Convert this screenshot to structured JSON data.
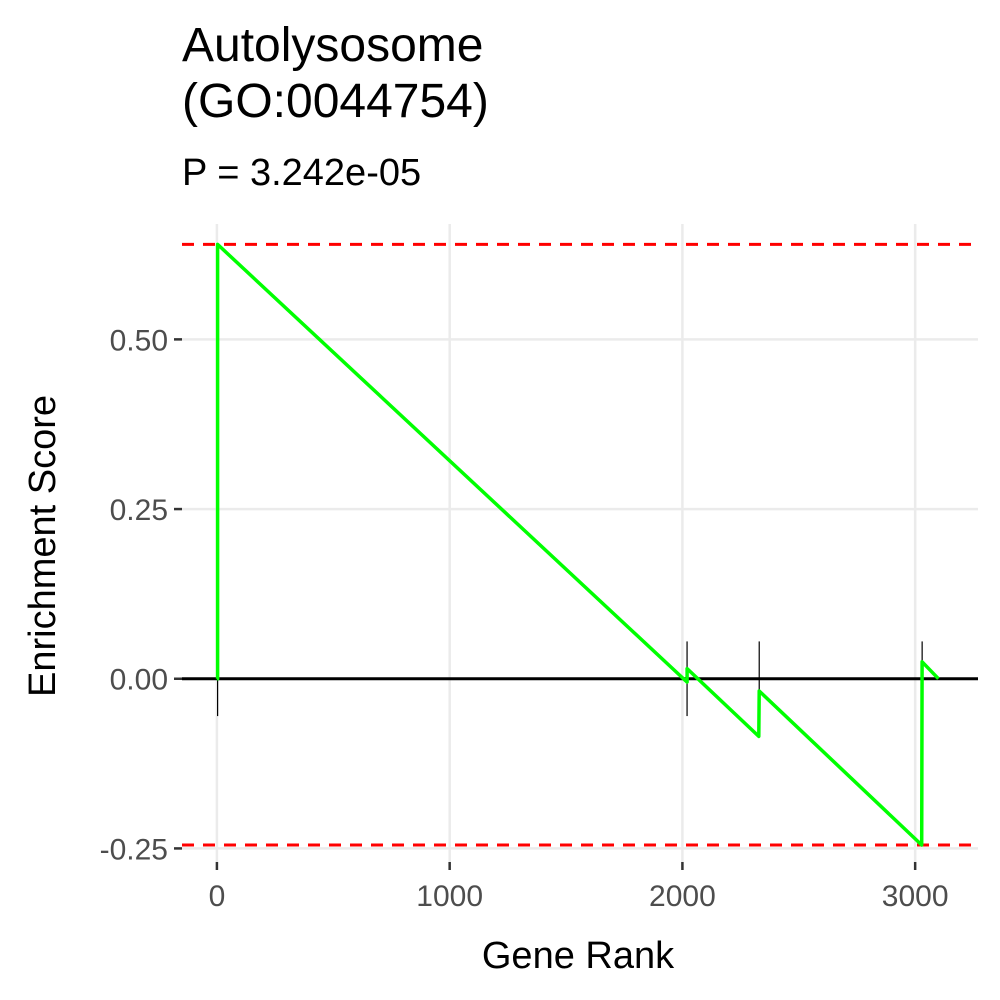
{
  "chart_data": {
    "type": "line",
    "title_line1": "Autolysosome",
    "title_line2": "(GO:0044754)",
    "subtitle": "P = 3.242e-05",
    "xlabel": "Gene Rank",
    "ylabel": "Enrichment Score",
    "xlim": [
      -150,
      3270
    ],
    "ylim": [
      -0.27,
      0.67
    ],
    "x_ticks": [
      0,
      1000,
      2000,
      3000
    ],
    "x_tick_labels": [
      "0",
      "1000",
      "2000",
      "3000"
    ],
    "y_ticks": [
      -0.25,
      0,
      0.25,
      0.5
    ],
    "y_tick_labels": [
      "-0.25",
      "0.00",
      "0.25",
      "0.50"
    ],
    "grid": true,
    "hit_positions": [
      3,
      2020,
      2330,
      3030
    ],
    "max_es": 0.64,
    "min_es": -0.245,
    "series": [
      {
        "color": "#00ff00",
        "x": [
          0,
          3,
          3,
          2020,
          2020,
          2328,
          2330,
          3028,
          3030,
          3100
        ],
        "y": [
          0,
          0.0,
          0.64,
          -0.005,
          0.015,
          -0.085,
          -0.018,
          -0.245,
          0.025,
          0.0
        ]
      }
    ],
    "colors": {
      "es_line": "#00ff00",
      "extreme_lines": "#ff0000",
      "zero_line": "#000000",
      "grid": "#ebebeb"
    }
  }
}
